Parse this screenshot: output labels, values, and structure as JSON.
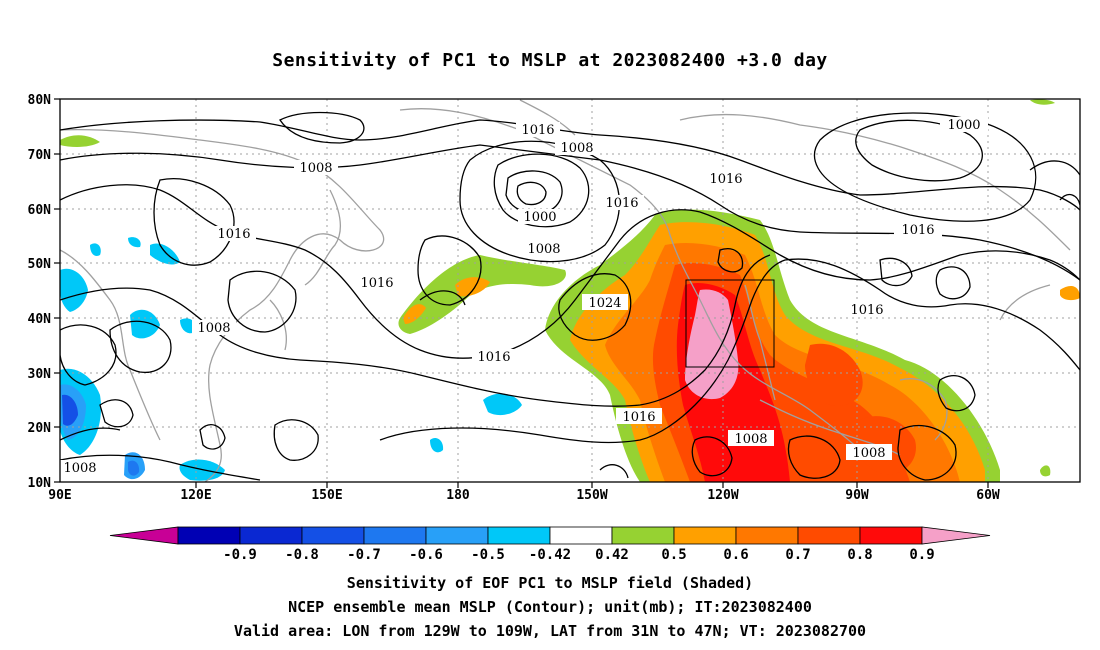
{
  "title": "Sensitivity of PC1 to MSLP at 2023082400 +3.0 day",
  "map": {
    "lon_ticks": [
      "90E",
      "120E",
      "150E",
      "180",
      "150W",
      "120W",
      "90W",
      "60W"
    ],
    "lat_ticks": [
      "80N",
      "70N",
      "60N",
      "50N",
      "40N",
      "30N",
      "20N",
      "10N"
    ],
    "contour_labels": [
      "1016",
      "1008",
      "1000",
      "1016",
      "1008",
      "1016",
      "1016",
      "1000",
      "1008",
      "1016",
      "1016",
      "1016",
      "1024",
      "1008",
      "1016",
      "1016",
      "1008",
      "1008",
      "1008"
    ],
    "valid_box": {
      "lon_from": "129W",
      "lon_to": "109W",
      "lat_from": "31N",
      "lat_to": "47N"
    }
  },
  "colorbar": {
    "labels": [
      "-0.9",
      "-0.8",
      "-0.7",
      "-0.6",
      "-0.5",
      "-0.42",
      "0.42",
      "0.5",
      "0.6",
      "0.7",
      "0.8",
      "0.9"
    ],
    "colors": [
      "#c80096",
      "#0000b4",
      "#0a28d2",
      "#1450e6",
      "#1e78f0",
      "#28a0f8",
      "#00c8f8",
      "#ffffff",
      "#96d232",
      "#ffa000",
      "#ff7800",
      "#ff4b00",
      "#ff0a0a",
      "#f5a0c8"
    ]
  },
  "captions": [
    "Sensitivity of EOF PC1 to MSLP field (Shaded)",
    "NCEP ensemble mean MSLP (Contour); unit(mb); IT:2023082400",
    "Valid area: LON from 129W to 109W, LAT from 31N to 47N; VT: 2023082700"
  ]
}
